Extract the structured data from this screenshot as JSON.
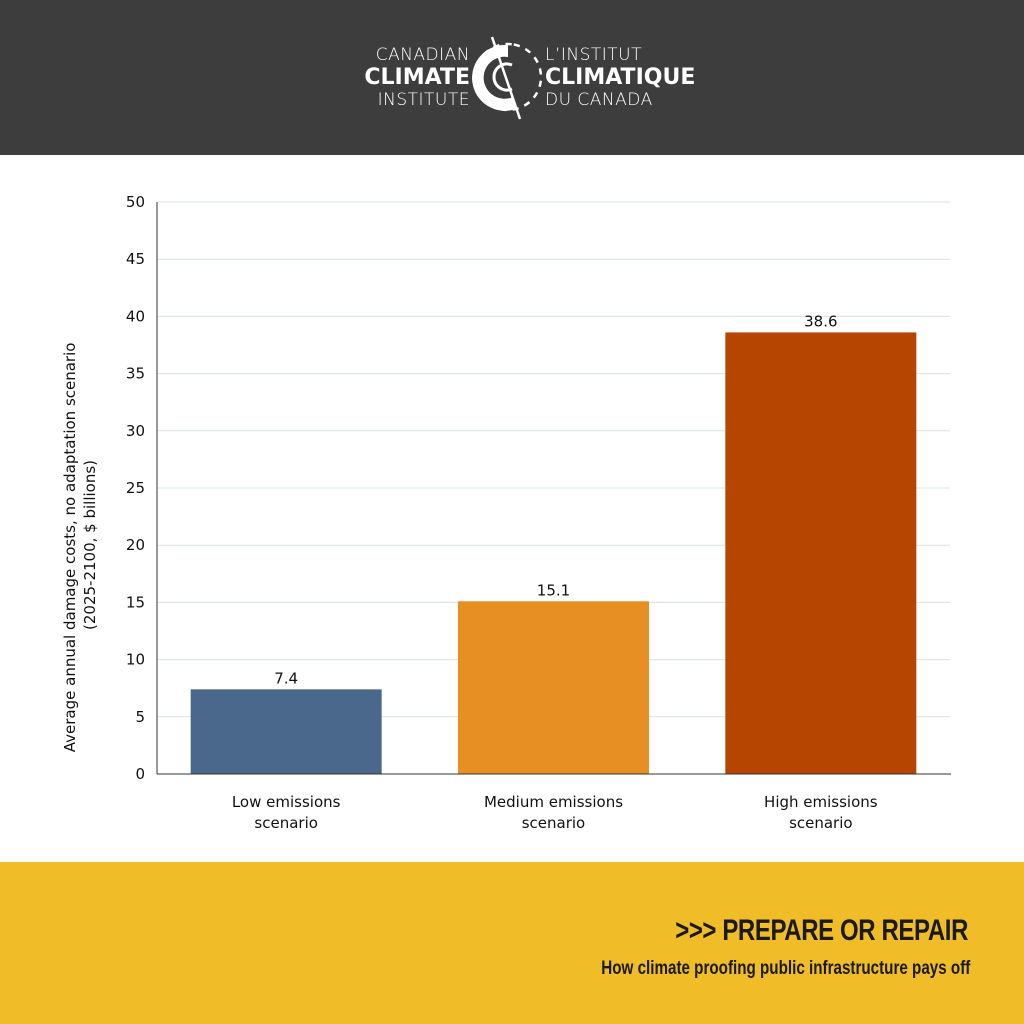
{
  "header": {
    "logo_left": [
      "CANADIAN",
      "CLIMATE",
      "INSTITUTE"
    ],
    "logo_right": [
      "L’INSTITUT",
      "CLIMATIQUE",
      "DU CANADA"
    ]
  },
  "footer": {
    "title": ">>> PREPARE OR REPAIR",
    "subtitle": "How climate proofing public infrastructure pays off"
  },
  "chart_data": {
    "type": "bar",
    "title": "",
    "xlabel": "",
    "ylabel": [
      "Average annual damage costs, no adaptation scenario",
      "(2025-2100, $ billions)"
    ],
    "categories": [
      [
        "Low emissions",
        "scenario"
      ],
      [
        "Medium emissions",
        "scenario"
      ],
      [
        "High emissions",
        "scenario"
      ]
    ],
    "values": [
      7.4,
      15.1,
      38.6
    ],
    "data_labels": [
      "7.4",
      "15.1",
      "38.6"
    ],
    "colors": [
      "#4a688c",
      "#e88f23",
      "#b54500"
    ],
    "ylim": [
      0,
      50
    ],
    "yticks": [
      0,
      5,
      10,
      15,
      20,
      25,
      30,
      35,
      40,
      45,
      50
    ],
    "grid": true,
    "legend": "none"
  }
}
